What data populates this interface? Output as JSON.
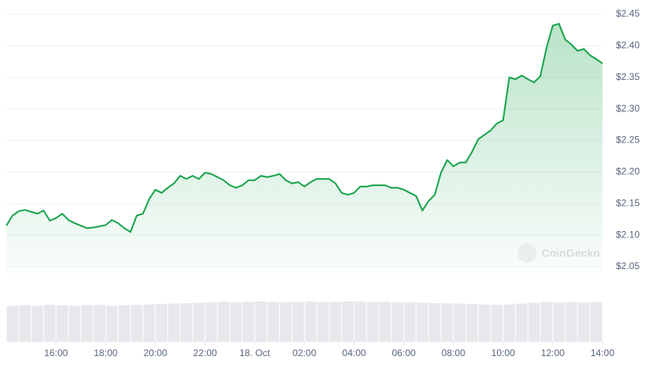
{
  "chart_data": {
    "type": "line",
    "color": "#17a34a",
    "x": [
      14,
      14.25,
      14.5,
      14.75,
      15,
      15.25,
      15.5,
      15.75,
      16,
      16.25,
      16.5,
      16.75,
      17,
      17.25,
      17.5,
      17.75,
      18,
      18.25,
      18.5,
      18.75,
      19,
      19.25,
      19.5,
      19.75,
      20,
      20.25,
      20.5,
      20.75,
      21,
      21.25,
      21.5,
      21.75,
      22,
      22.25,
      22.5,
      22.75,
      23,
      23.25,
      23.5,
      23.75,
      24,
      24.25,
      24.5,
      24.75,
      25,
      25.25,
      25.5,
      25.75,
      26,
      26.25,
      26.5,
      26.75,
      27,
      27.25,
      27.5,
      27.75,
      28,
      28.25,
      28.5,
      28.75,
      29,
      29.25,
      29.5,
      29.75,
      30,
      30.25,
      30.5,
      30.75,
      31,
      31.25,
      31.5,
      31.75,
      32,
      32.25,
      32.5,
      32.75,
      33,
      33.25,
      33.5,
      33.75,
      34,
      34.25,
      34.5,
      34.75,
      35,
      35.25,
      35.5,
      35.75,
      36,
      36.25,
      36.5,
      36.75,
      37,
      37.25,
      37.5,
      37.75,
      38
    ],
    "values": [
      2.115,
      2.131,
      2.138,
      2.14,
      2.137,
      2.134,
      2.139,
      2.123,
      2.127,
      2.134,
      2.124,
      2.119,
      2.115,
      2.111,
      2.112,
      2.114,
      2.116,
      2.124,
      2.119,
      2.111,
      2.105,
      2.131,
      2.134,
      2.157,
      2.172,
      2.167,
      2.175,
      2.182,
      2.194,
      2.189,
      2.194,
      2.189,
      2.199,
      2.197,
      2.192,
      2.187,
      2.179,
      2.175,
      2.179,
      2.187,
      2.187,
      2.194,
      2.192,
      2.194,
      2.197,
      2.187,
      2.182,
      2.184,
      2.177,
      2.184,
      2.189,
      2.189,
      2.189,
      2.182,
      2.167,
      2.164,
      2.167,
      2.177,
      2.177,
      2.179,
      2.179,
      2.179,
      2.175,
      2.175,
      2.172,
      2.167,
      2.162,
      2.139,
      2.154,
      2.164,
      2.199,
      2.219,
      2.209,
      2.215,
      2.215,
      2.232,
      2.252,
      2.259,
      2.266,
      2.277,
      2.282,
      2.35,
      2.347,
      2.353,
      2.347,
      2.342,
      2.352,
      2.397,
      2.432,
      2.435,
      2.41,
      2.402,
      2.392,
      2.395,
      2.385,
      2.379,
      2.372
    ],
    "xlim": [
      14,
      38
    ],
    "xticks": [
      {
        "value": 16,
        "label": "16:00"
      },
      {
        "value": 18,
        "label": "18:00"
      },
      {
        "value": 20,
        "label": "20:00"
      },
      {
        "value": 22,
        "label": "22:00"
      },
      {
        "value": 24,
        "label": "18. Oct"
      },
      {
        "value": 26,
        "label": "02:00"
      },
      {
        "value": 28,
        "label": "04:00"
      },
      {
        "value": 30,
        "label": "06:00"
      },
      {
        "value": 32,
        "label": "08:00"
      },
      {
        "value": 34,
        "label": "10:00"
      },
      {
        "value": 36,
        "label": "12:00"
      },
      {
        "value": 38,
        "label": "14:00"
      }
    ],
    "ylim": [
      2.05,
      2.45
    ],
    "yticks": [
      {
        "value": 2.05,
        "label": "$2.05"
      },
      {
        "value": 2.1,
        "label": "$2.10"
      },
      {
        "value": 2.15,
        "label": "$2.15"
      },
      {
        "value": 2.2,
        "label": "$2.20"
      },
      {
        "value": 2.25,
        "label": "$2.25"
      },
      {
        "value": 2.3,
        "label": "$2.30"
      },
      {
        "value": 2.35,
        "label": "$2.35"
      },
      {
        "value": 2.4,
        "label": "$2.40"
      },
      {
        "value": 2.45,
        "label": "$2.45"
      }
    ],
    "grid": true,
    "watermark": "CoinGecko",
    "volume": {
      "color": "#e6e8eb",
      "ylim": [
        0,
        100
      ],
      "values": [
        88,
        89,
        88,
        90,
        89,
        88,
        89,
        90,
        88,
        89,
        90,
        91,
        92,
        93,
        94,
        95,
        96,
        97,
        96,
        97,
        98,
        97,
        96,
        97,
        98,
        97,
        97,
        98,
        98,
        97,
        97,
        96,
        96,
        95,
        94,
        94,
        93,
        92,
        91,
        90,
        91,
        93,
        95,
        97,
        96,
        97,
        96,
        97
      ]
    }
  }
}
